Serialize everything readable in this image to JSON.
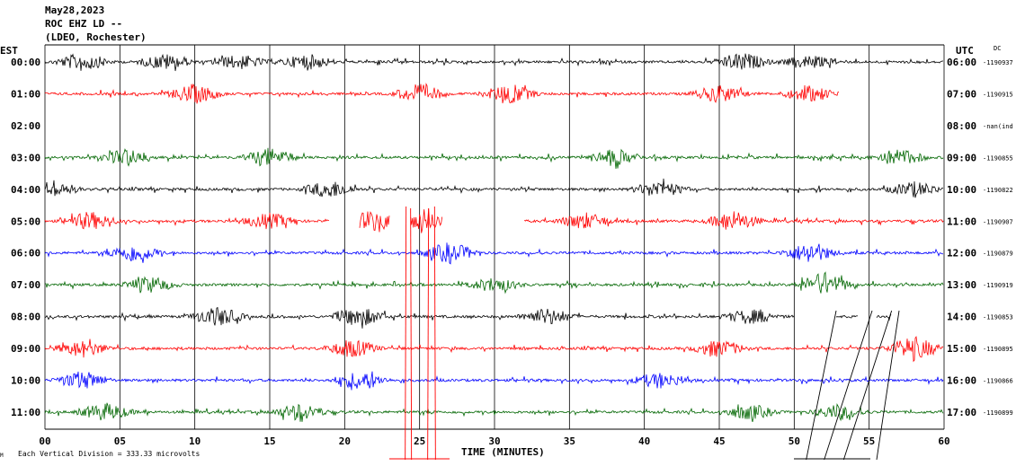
{
  "header": {
    "date": "May28,2023",
    "station": "ROC EHZ LD --",
    "network": "(LDEO, Rochester)"
  },
  "left_axis_label": "EST",
  "right_axis_label": "UTC",
  "dc_label": "DC",
  "footer": {
    "scale": "Each Vertical Division =  333.33 microvolts",
    "corner_mark": "M"
  },
  "colors": {
    "black": "#000000",
    "red": "#ff0000",
    "green": "#006600",
    "blue": "#0000ff",
    "grid": "#000000"
  },
  "chart_data": {
    "type": "line",
    "title": "May28,2023 ROC EHZ LD -- (LDEO, Rochester)",
    "xlabel": "TIME (MINUTES)",
    "xlim": [
      0,
      60
    ],
    "x_ticks": [
      "00",
      "05",
      "10",
      "15",
      "20",
      "25",
      "30",
      "35",
      "40",
      "45",
      "50",
      "55",
      "60"
    ],
    "rows": [
      {
        "est": "00:00",
        "utc": "06:00",
        "dc": "-1190937",
        "color": "black",
        "segments": [
          [
            0,
            60
          ]
        ],
        "bursts": [
          [
            2.5,
            1.4
          ],
          [
            8,
            1.2
          ],
          [
            13,
            1.1
          ],
          [
            17.5,
            1.2
          ],
          [
            46.5,
            1.4
          ],
          [
            51,
            1
          ]
        ]
      },
      {
        "est": "01:00",
        "utc": "07:00",
        "dc": "-1190915",
        "color": "red",
        "segments": [
          [
            0,
            53
          ]
        ],
        "bursts": [
          [
            10,
            1.5
          ],
          [
            25,
            1.4
          ],
          [
            31,
            1.5
          ],
          [
            45,
            1.3
          ],
          [
            51,
            1.2
          ]
        ]
      },
      {
        "est": "02:00",
        "utc": "08:00",
        "dc": "-nan(ind",
        "color": "black",
        "segments": [],
        "bursts": []
      },
      {
        "est": "03:00",
        "utc": "09:00",
        "dc": "-1190855",
        "color": "green",
        "segments": [
          [
            0,
            60
          ]
        ],
        "bursts": [
          [
            5.5,
            1.3
          ],
          [
            15,
            1.4
          ],
          [
            38,
            1.3
          ],
          [
            57,
            1.3
          ]
        ]
      },
      {
        "est": "04:00",
        "utc": "10:00",
        "dc": "-1190822",
        "color": "black",
        "segments": [
          [
            0,
            60
          ]
        ],
        "bursts": [
          [
            0.5,
            1.3
          ],
          [
            19,
            1.4
          ],
          [
            41,
            1.3
          ],
          [
            58,
            1.2
          ]
        ]
      },
      {
        "est": "05:00",
        "utc": "11:00",
        "dc": "-1190907",
        "color": "red",
        "segments": [
          [
            0,
            19
          ],
          [
            21,
            23
          ],
          [
            24.4,
            26.5
          ],
          [
            32,
            60
          ]
        ],
        "bursts": [
          [
            3,
            1.4
          ],
          [
            15,
            1.2
          ],
          [
            21.8,
            1.6
          ],
          [
            25.2,
            1.8
          ],
          [
            36,
            1.3
          ],
          [
            46,
            1.5
          ]
        ]
      },
      {
        "est": "06:00",
        "utc": "12:00",
        "dc": "-1190879",
        "color": "blue",
        "segments": [
          [
            0,
            60
          ]
        ],
        "bursts": [
          [
            6,
            1.5
          ],
          [
            27,
            1.6
          ],
          [
            51,
            1.5
          ]
        ]
      },
      {
        "est": "07:00",
        "utc": "13:00",
        "dc": "-1190919",
        "color": "green",
        "segments": [
          [
            0,
            60
          ]
        ],
        "bursts": [
          [
            7,
            1.2
          ],
          [
            30,
            1.1
          ],
          [
            52,
            1.9
          ]
        ]
      },
      {
        "est": "08:00",
        "utc": "14:00",
        "dc": "-1190853",
        "color": "black",
        "segments": [
          [
            0,
            50
          ],
          [
            52.8,
            54.3
          ],
          [
            55.5,
            56.5
          ]
        ],
        "bursts": [
          [
            11.5,
            1.5
          ],
          [
            21,
            1.5
          ],
          [
            33.5,
            1.3
          ],
          [
            47,
            1.1
          ]
        ]
      },
      {
        "est": "09:00",
        "utc": "15:00",
        "dc": "-1190895",
        "color": "red",
        "segments": [
          [
            0,
            60
          ]
        ],
        "bursts": [
          [
            2.5,
            1.3
          ],
          [
            20.5,
            1.4
          ],
          [
            45,
            1.3
          ],
          [
            58,
            1.8
          ]
        ]
      },
      {
        "est": "10:00",
        "utc": "16:00",
        "dc": "-1190866",
        "color": "blue",
        "segments": [
          [
            0,
            60
          ]
        ],
        "bursts": [
          [
            2.5,
            1.4
          ],
          [
            21,
            1.4
          ],
          [
            41,
            1.2
          ]
        ]
      },
      {
        "est": "11:00",
        "utc": "17:00",
        "dc": "-1190899",
        "color": "green",
        "segments": [
          [
            0,
            60
          ]
        ],
        "bursts": [
          [
            4,
            1.4
          ],
          [
            17,
            1.3
          ],
          [
            47,
            1.2
          ],
          [
            53,
            1.2
          ]
        ]
      }
    ],
    "grid": true
  }
}
